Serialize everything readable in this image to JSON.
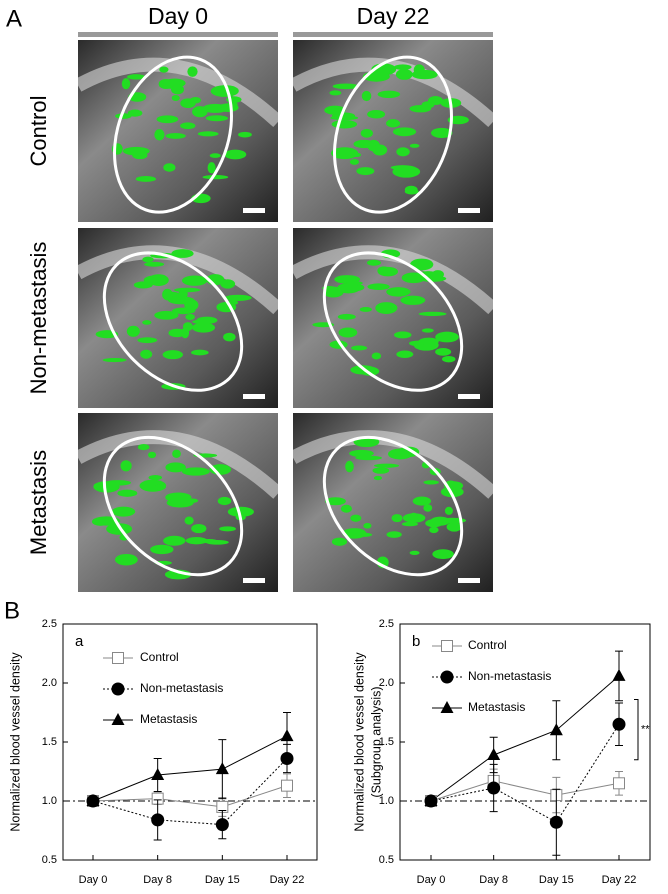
{
  "panel_a": {
    "label": "A",
    "columns": [
      "Day 0",
      "Day 22"
    ],
    "rows": [
      "Control",
      "Non-metastasis",
      "Metastasis"
    ]
  },
  "panel_b_label": "B",
  "chart_data": [
    {
      "type": "line",
      "panel": "a",
      "categories": [
        "Day 0",
        "Day 8",
        "Day 15",
        "Day 22"
      ],
      "ylabel": [
        "Normalized blood vessel density"
      ],
      "ylim": [
        0.5,
        2.5
      ],
      "yticks": [
        0.5,
        {
          "value": 1,
          "label": "1.0"
        },
        1.5,
        {
          "value": 2,
          "label": "2.0"
        },
        2.5
      ],
      "reference_line": 1,
      "series": [
        {
          "name": "Control",
          "color": "#888888",
          "marker": "square-open",
          "line_style": "solid",
          "values": [
            1.0,
            1.02,
            0.95,
            1.13
          ],
          "errors": [
            0,
            0.05,
            0.08,
            0.1
          ]
        },
        {
          "name": "Non-metastasis",
          "color": "#000000",
          "marker": "circle",
          "line_style": "dotted",
          "values": [
            1.0,
            0.84,
            0.8,
            1.36
          ],
          "errors": [
            0,
            0.17,
            0.12,
            0.12
          ]
        },
        {
          "name": "Metastasis",
          "color": "#000000",
          "marker": "triangle",
          "line_style": "solid",
          "values": [
            1.0,
            1.22,
            1.27,
            1.55
          ],
          "errors": [
            0,
            0.14,
            0.25,
            0.2
          ]
        }
      ]
    },
    {
      "type": "line",
      "panel": "b",
      "categories": [
        "Day 0",
        "Day 8",
        "Day 15",
        "Day 22"
      ],
      "ylabel": [
        "Normalized blood vessel density",
        "(Subgroup analysis)"
      ],
      "ylim": [
        0.5,
        2.5
      ],
      "yticks": [
        0.5,
        {
          "value": 1,
          "label": "1.0"
        },
        1.5,
        {
          "value": 2,
          "label": "2.0"
        },
        2.5
      ],
      "reference_line": 1,
      "annotation": "**",
      "series": [
        {
          "name": "Control",
          "color": "#888888",
          "marker": "square-open",
          "line_style": "solid",
          "values": [
            1.0,
            1.17,
            1.05,
            1.15
          ],
          "errors": [
            0,
            0.1,
            0.15,
            0.1
          ]
        },
        {
          "name": "Non-metastasis",
          "color": "#000000",
          "marker": "circle",
          "line_style": "dotted",
          "values": [
            1.0,
            1.11,
            0.82,
            1.65
          ],
          "errors": [
            0,
            0.2,
            0.28,
            0.18
          ]
        },
        {
          "name": "Metastasis",
          "color": "#000000",
          "marker": "triangle",
          "line_style": "solid",
          "values": [
            1.0,
            1.39,
            1.6,
            2.06
          ],
          "errors": [
            0,
            0.15,
            0.25,
            0.21
          ]
        }
      ]
    }
  ]
}
